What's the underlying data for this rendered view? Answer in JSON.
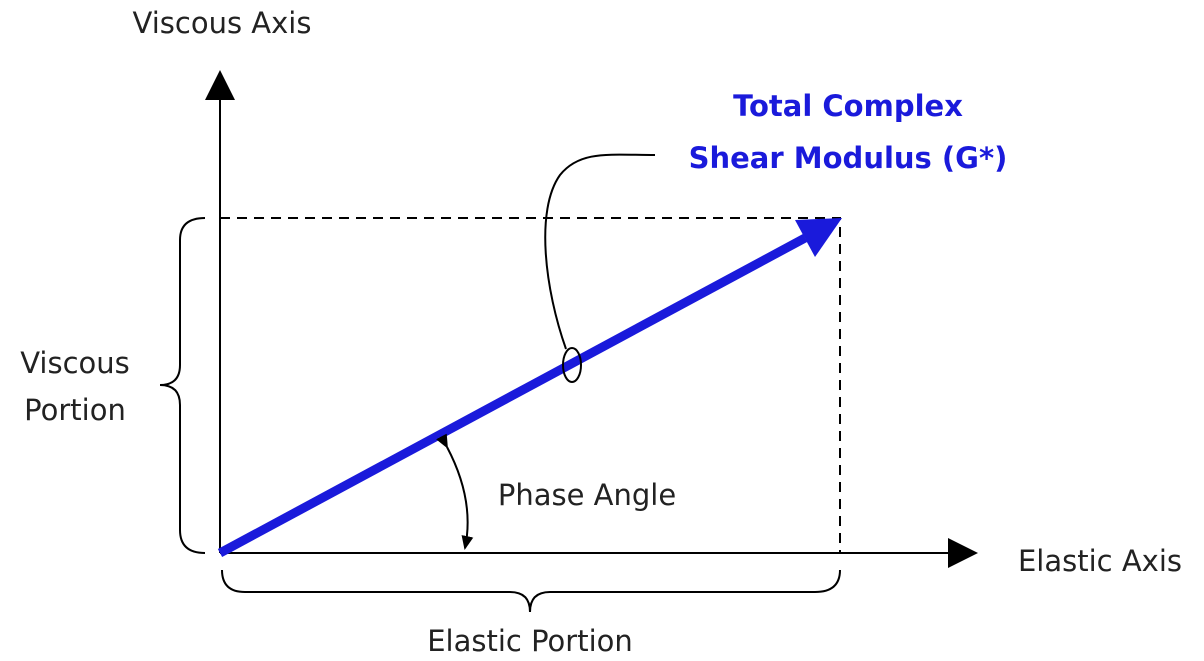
{
  "axes": {
    "vertical": "Viscous Axis",
    "horizontal": "Elastic Axis"
  },
  "vector": {
    "label_lines": [
      "Total Complex",
      "Shear Modulus (G*)"
    ]
  },
  "portions": {
    "viscous_lines": [
      "Viscous",
      "Portion"
    ],
    "elastic": "Elastic Portion"
  },
  "angle": {
    "label": "Phase Angle"
  }
}
